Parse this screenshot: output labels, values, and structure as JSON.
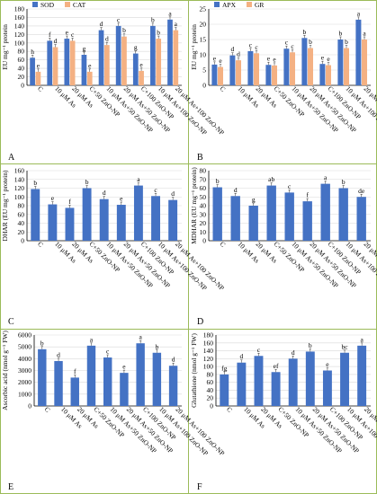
{
  "colors": {
    "blue": "#4472C4",
    "orange": "#F4B183",
    "purple": "#7030A0",
    "yellow": "#FFC000",
    "gridline": "#d9d9d9",
    "border": "#9bbb59"
  },
  "chart_data": [
    {
      "id": "A",
      "type": "bar",
      "panel_label": "A",
      "ylabel": "EU mg⁻¹ protein",
      "xlabel": "",
      "ylim": [
        0,
        180
      ],
      "yticks": [
        0,
        20,
        40,
        60,
        80,
        100,
        120,
        140,
        160,
        180
      ],
      "legend": "top-left",
      "categories": [
        "C",
        "10 μM As",
        "20 μM As",
        "C+50 ZnO-NP",
        "10 μM As+50 ZnO-NP",
        "20 μM As+50 ZnO-NP",
        "C+100 ZnO-NP",
        "10 μM As+100 ZnO-NP",
        "20 μM As+100 ZnO-NP"
      ],
      "series": [
        {
          "name": "SOD",
          "color": "#4472C4",
          "values": [
            65,
            105,
            110,
            72,
            130,
            140,
            75,
            140,
            155
          ],
          "labels": [
            "h",
            "f",
            "e",
            "g",
            "d",
            "c",
            "g",
            "b",
            "a"
          ]
        },
        {
          "name": "CAT",
          "color": "#F4B183",
          "values": [
            32,
            90,
            105,
            32,
            95,
            115,
            34,
            110,
            130
          ],
          "labels": [
            "e",
            "d",
            "c",
            "e",
            "d",
            "b",
            "e",
            "b",
            "a"
          ]
        }
      ]
    },
    {
      "id": "B",
      "type": "bar",
      "panel_label": "B",
      "ylabel": "EU mg⁻¹ protein",
      "xlabel": "",
      "ylim": [
        0,
        25
      ],
      "yticks": [
        0,
        5,
        10,
        15,
        20,
        25
      ],
      "legend": "top-left",
      "categories": [
        "C",
        "10 μM As",
        "20 μM As",
        "C+50 ZnO-NP",
        "10 μM As+50 ZnO-NP",
        "20 μM As+50 ZnO-NP",
        "C+100 ZnO-NP",
        "10 μM As+100 ZnO-NP",
        "20 μM As+100 ZnO-NP"
      ],
      "series": [
        {
          "name": "APX",
          "color": "#4472C4",
          "values": [
            6.8,
            9.8,
            11.2,
            6.7,
            12.0,
            15.5,
            7.0,
            15.0,
            21.5
          ],
          "labels": [
            "e",
            "d",
            "c",
            "e",
            "c",
            "b",
            "e",
            "b",
            "a"
          ]
        },
        {
          "name": "GR",
          "color": "#F4B183",
          "values": [
            6.0,
            8.2,
            10.5,
            6.5,
            10.8,
            12.2,
            6.6,
            12.2,
            15.0
          ],
          "labels": [
            "e",
            "d",
            "c",
            "e",
            "c",
            "b",
            "e",
            "b",
            "a"
          ]
        }
      ]
    },
    {
      "id": "C",
      "type": "bar",
      "panel_label": "C",
      "ylabel": "DHAR (EU mg⁻¹ protein)",
      "xlabel": "",
      "ylim": [
        0,
        160
      ],
      "yticks": [
        0,
        20,
        40,
        60,
        80,
        100,
        120,
        140,
        160
      ],
      "categories": [
        "C",
        "10 μM As",
        "20 μM As",
        "C+50 ZnO-NP",
        "10 μM As+50 ZnO-NP",
        "20 μM As+50 ZnO-NP",
        "C+100 ZnO-NP",
        "10 μM As+100 ZnO-NP",
        "20 μM As+100 ZnO-NP"
      ],
      "series": [
        {
          "name": "",
          "color": "#4472C4",
          "values": [
            118,
            83,
            75,
            120,
            95,
            82,
            126,
            102,
            93
          ],
          "labels": [
            "b",
            "e",
            "f",
            "b",
            "d",
            "e",
            "a",
            "c",
            "d"
          ]
        }
      ]
    },
    {
      "id": "D",
      "type": "bar",
      "panel_label": "D",
      "ylabel": "MDHAR (EU mg⁻¹ protein)",
      "xlabel": "",
      "ylim": [
        0,
        80
      ],
      "yticks": [
        0,
        10,
        20,
        30,
        40,
        50,
        60,
        70,
        80
      ],
      "categories": [
        "C",
        "10 μM As",
        "20 μM As",
        "C+50 ZnO-NP",
        "10 μM As+50 ZnO-NP",
        "20 μM As+50 ZnO-NP",
        "C+100 ZnO-NP",
        "10 μM As+100 ZnO-NP",
        "20 μM As+100 ZnO-NP"
      ],
      "series": [
        {
          "name": "",
          "color": "#4472C4",
          "values": [
            61,
            51,
            40,
            63,
            55,
            45,
            65,
            60,
            50
          ],
          "labels": [
            "b",
            "d",
            "g",
            "ab",
            "c",
            "f",
            "a",
            "b",
            "de"
          ]
        }
      ]
    },
    {
      "id": "E",
      "type": "bar",
      "panel_label": "E",
      "ylabel": "Ascorbic acid (nmol g⁻¹ FW)",
      "xlabel": "",
      "ylim": [
        0,
        6000
      ],
      "yticks": [
        0,
        1000,
        2000,
        3000,
        4000,
        5000,
        6000
      ],
      "categories": [
        "C",
        "10 μM As",
        "20 μM As",
        "C+50 ZnO-NP",
        "10 μM As+50 ZnO-NP",
        "20 μM As+50 ZnO-NP",
        "C+100 ZnO-NP",
        "10 μM As+100 ZnO-NP",
        "20 μM As+100 ZnO-NP"
      ],
      "series": [
        {
          "name": "",
          "color": "#4472C4",
          "values": [
            4800,
            3800,
            2400,
            5100,
            4100,
            2800,
            5300,
            4500,
            3400
          ],
          "labels": [
            "b",
            "d",
            "f",
            "a",
            "c",
            "e",
            "a",
            "b",
            "d"
          ]
        }
      ]
    },
    {
      "id": "F",
      "type": "bar",
      "panel_label": "F",
      "ylabel": "Glutathione (nmol g⁻¹ FW)",
      "xlabel": "",
      "ylim": [
        0,
        180
      ],
      "yticks": [
        0,
        20,
        40,
        60,
        80,
        100,
        120,
        140,
        160,
        180
      ],
      "categories": [
        "C",
        "10 μM As",
        "20 μM As",
        "C+50 ZnO-NP",
        "10 μM As+50 ZnO-NP",
        "20 μM As+50 ZnO-NP",
        "C+100 ZnO-NP",
        "10 μM As+100 ZnO-NP",
        "20 μM As+100 ZnO-NP"
      ],
      "series": [
        {
          "name": "",
          "color": "#4472C4",
          "values": [
            80,
            110,
            127,
            86,
            120,
            138,
            90,
            135,
            153
          ],
          "labels": [
            "fg",
            "d",
            "c",
            "ef",
            "d",
            "b",
            "e",
            "bc",
            "a"
          ]
        }
      ]
    }
  ]
}
